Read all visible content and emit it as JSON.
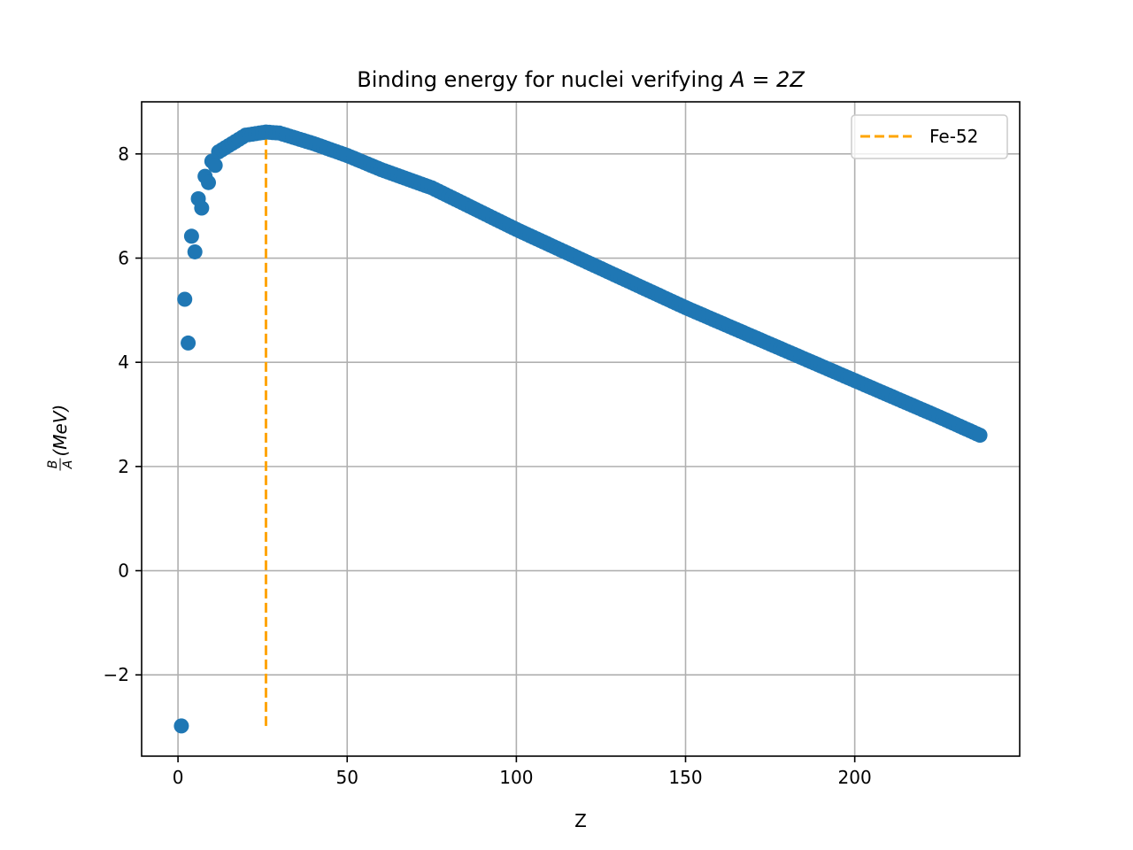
{
  "chart_data": {
    "type": "scatter",
    "title_text": "Binding energy for nuclei verifying ",
    "title_math": "A = 2Z",
    "xlabel": "Z",
    "ylabel_frac_num": "B",
    "ylabel_frac_den": "A",
    "ylabel_rest": "(MeV)",
    "xlim": [
      -10.75,
      248.75
    ],
    "ylim": [
      -3.56,
      9.0
    ],
    "xticks": [
      0,
      50,
      100,
      150,
      200
    ],
    "xtick_labels": [
      "0",
      "50",
      "100",
      "150",
      "200"
    ],
    "yticks": [
      -2,
      0,
      2,
      4,
      6,
      8
    ],
    "ytick_labels": [
      "−2",
      "0",
      "2",
      "4",
      "6",
      "8"
    ],
    "grid": true,
    "legend_position": "upper right",
    "series": [
      {
        "kind": "scatter",
        "color": "#1f77b4",
        "formula": "semi-empirical mass formula (Weizsaecker), A = 2Z, Z = 1..237",
        "z_range": [
          1,
          237
        ],
        "points": [
          [
            1,
            -2.98
          ],
          [
            2,
            5.21
          ],
          [
            3,
            4.37
          ],
          [
            4,
            6.42
          ],
          [
            5,
            6.12
          ],
          [
            6,
            7.14
          ],
          [
            7,
            6.96
          ],
          [
            8,
            7.57
          ],
          [
            9,
            7.45
          ],
          [
            10,
            7.86
          ],
          [
            11,
            7.78
          ],
          [
            12,
            8.04
          ],
          [
            20,
            8.36
          ],
          [
            26,
            8.42
          ],
          [
            30,
            8.4
          ],
          [
            40,
            8.2
          ],
          [
            50,
            7.97
          ],
          [
            60,
            7.7
          ],
          [
            75,
            7.35
          ],
          [
            100,
            6.55
          ],
          [
            125,
            5.8
          ],
          [
            150,
            5.05
          ],
          [
            175,
            4.35
          ],
          [
            200,
            3.65
          ],
          [
            225,
            2.95
          ],
          [
            237,
            2.6
          ]
        ]
      },
      {
        "kind": "vline",
        "name": "Fe-52",
        "color": "#ffa500",
        "x": 26,
        "y_range": [
          -2.98,
          8.44
        ]
      }
    ]
  }
}
